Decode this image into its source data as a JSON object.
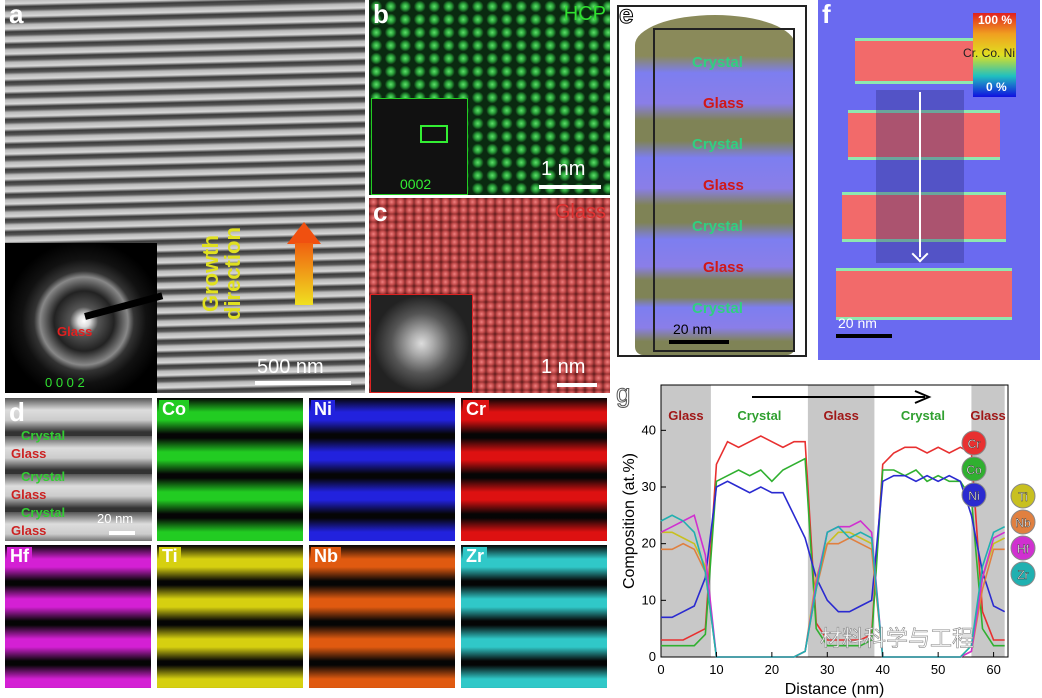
{
  "panels": {
    "a": {
      "label": "a",
      "growth_line1": "Growth",
      "growth_line2": "direction",
      "scale": "500 nm",
      "inset_glass": "Glass",
      "inset_index": "0 0 0 2"
    },
    "b": {
      "label": "b",
      "phase": "HCP",
      "inset_index": "0002",
      "scale": "1 nm"
    },
    "c": {
      "label": "c",
      "phase": "Glass",
      "scale": "1 nm"
    },
    "d": {
      "label": "d",
      "layers": [
        "Crystal",
        "Glass",
        "Crystal",
        "Glass",
        "Crystal",
        "Glass"
      ],
      "scale": "20 nm",
      "maps": [
        {
          "el": "Co",
          "color": "#22cc22"
        },
        {
          "el": "Ni",
          "color": "#2222dd"
        },
        {
          "el": "Cr",
          "color": "#dd1111"
        },
        {
          "el": "Hf",
          "color": "#d420d4"
        },
        {
          "el": "Ti",
          "color": "#d6d010"
        },
        {
          "el": "Nb",
          "color": "#e05a10"
        },
        {
          "el": "Zr",
          "color": "#30c8c8"
        }
      ]
    },
    "e": {
      "label": "e",
      "layers": [
        "Crystal",
        "Glass",
        "Crystal",
        "Glass",
        "Crystal",
        "Glass",
        "Crystal"
      ],
      "scale": "20 nm"
    },
    "f": {
      "label": "f",
      "cb_max": "100 %",
      "cb_min": "0 %",
      "cb_title": "Cr. Co. Ni",
      "scale": "20 nm"
    }
  },
  "watermark": "材料科学与工程",
  "chart_data": {
    "type": "line",
    "panel_label": "g",
    "xlabel": "Distance (nm)",
    "ylabel": "Composition (at.%)",
    "xlim": [
      0,
      62
    ],
    "ylim": [
      0,
      48
    ],
    "xticks": [
      0,
      10,
      20,
      30,
      40,
      50,
      60
    ],
    "yticks": [
      0,
      10,
      20,
      30,
      40
    ],
    "regions": [
      {
        "label": "Glass",
        "from": 0,
        "to": 9
      },
      {
        "label": "Crystal",
        "from": 9,
        "to": 26.5
      },
      {
        "label": "Glass",
        "from": 26.5,
        "to": 38.5
      },
      {
        "label": "Crystal",
        "from": 38.5,
        "to": 56
      },
      {
        "label": "Glass",
        "from": 56,
        "to": 62
      }
    ],
    "x": [
      0,
      2,
      4,
      6,
      8,
      10,
      12,
      14,
      16,
      18,
      20,
      22,
      24,
      26,
      28,
      30,
      32,
      34,
      36,
      38,
      40,
      42,
      44,
      46,
      48,
      50,
      52,
      54,
      56,
      58,
      60,
      62
    ],
    "series": [
      {
        "name": "Cr",
        "color": "#e83030",
        "values": [
          3,
          3,
          3,
          4,
          5,
          34,
          38,
          37,
          38,
          39,
          38,
          37,
          38,
          38,
          6,
          3,
          3,
          3,
          3,
          4,
          34,
          36,
          37,
          37,
          36,
          37,
          36,
          37,
          36,
          8,
          3,
          3
        ]
      },
      {
        "name": "Co",
        "color": "#30b030",
        "values": [
          2,
          2,
          2,
          2,
          4,
          31,
          32,
          33,
          32,
          33,
          31,
          33,
          34,
          35,
          5,
          2,
          2,
          2,
          2,
          3,
          33,
          33,
          32,
          33,
          31,
          32,
          31,
          31,
          28,
          5,
          2,
          2
        ]
      },
      {
        "name": "Ni",
        "color": "#2a2ad0",
        "values": [
          7,
          7,
          8,
          9,
          14,
          30,
          31,
          30,
          29,
          30,
          29,
          29,
          25,
          21,
          14,
          10,
          8,
          8,
          9,
          10,
          31,
          32,
          32,
          31,
          32,
          31,
          32,
          31,
          25,
          15,
          9,
          8
        ]
      },
      {
        "name": "Ti",
        "color": "#c8c020",
        "values": [
          22,
          22,
          21,
          20,
          16,
          0,
          0,
          0,
          0,
          0,
          0,
          0,
          0,
          1,
          14,
          20,
          22,
          22,
          21,
          20,
          0,
          0,
          0,
          0,
          0,
          0,
          0,
          0,
          2,
          14,
          20,
          21
        ]
      },
      {
        "name": "Nb",
        "color": "#e08040",
        "values": [
          19,
          19,
          20,
          19,
          15,
          0,
          0,
          0,
          0,
          0,
          0,
          0,
          0,
          1,
          12,
          20,
          20,
          21,
          20,
          19,
          0,
          0,
          0,
          0,
          0,
          0,
          0,
          0,
          1,
          12,
          19,
          19
        ]
      },
      {
        "name": "Hf",
        "color": "#d030d0",
        "values": [
          22,
          23,
          24,
          25,
          18,
          0,
          0,
          0,
          0,
          0,
          0,
          0,
          0,
          1,
          13,
          22,
          23,
          23,
          24,
          22,
          0,
          0,
          0,
          0,
          0,
          0,
          0,
          0,
          1,
          14,
          21,
          22
        ]
      },
      {
        "name": "Zr",
        "color": "#20b0b0",
        "values": [
          24,
          25,
          24,
          22,
          15,
          0,
          0,
          0,
          0,
          0,
          0,
          0,
          0,
          1,
          12,
          22,
          23,
          21,
          22,
          21,
          0,
          0,
          0,
          0,
          0,
          0,
          0,
          0,
          2,
          16,
          22,
          23
        ]
      }
    ]
  }
}
